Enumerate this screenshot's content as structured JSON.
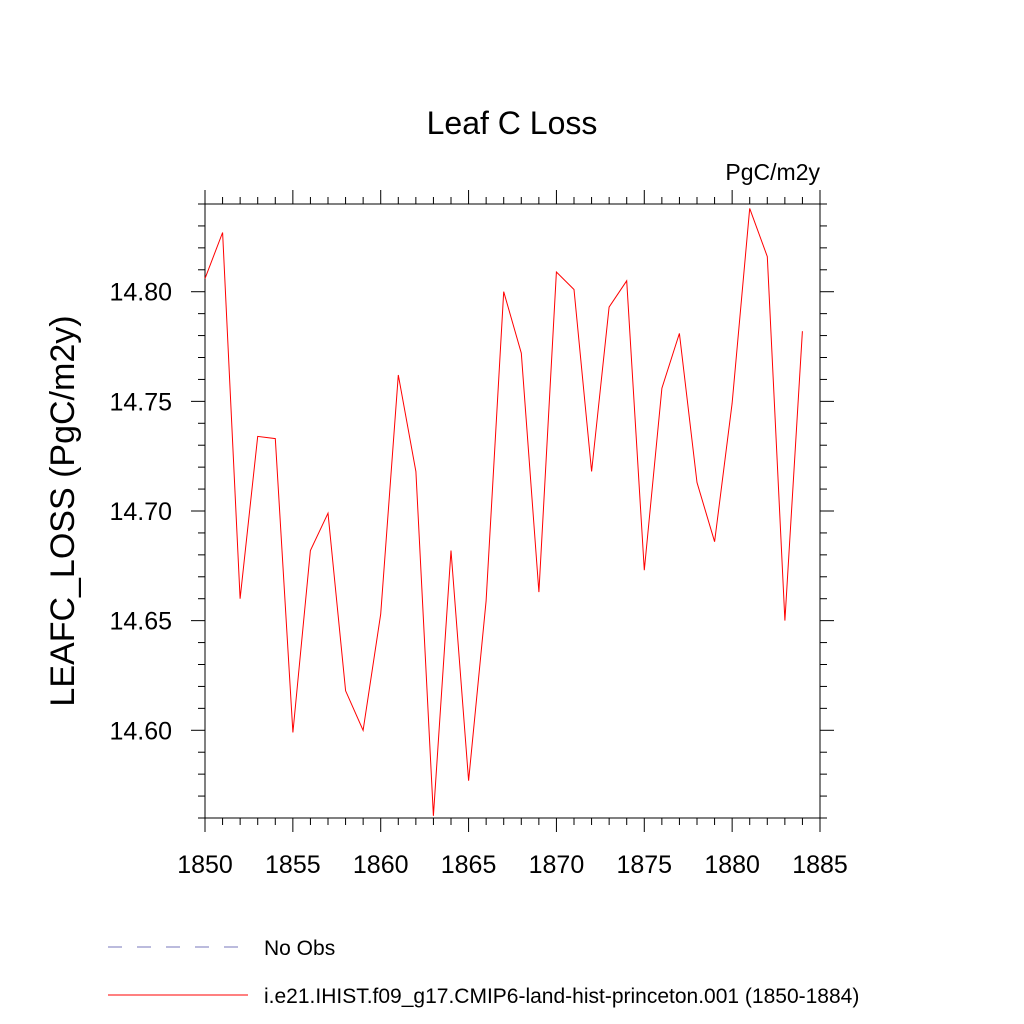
{
  "chart_data": {
    "type": "line",
    "title": "Leaf C Loss",
    "units": "PgC/m2y",
    "ylabel": "LEAFC_LOSS  (PgC/m2y)",
    "xlabel": "",
    "xlim": [
      1850,
      1885
    ],
    "ylim": [
      14.56,
      14.84
    ],
    "x_ticks": [
      "1850",
      "1855",
      "1860",
      "1865",
      "1870",
      "1875",
      "1880",
      "1885"
    ],
    "y_ticks": [
      "14.60",
      "14.65",
      "14.70",
      "14.75",
      "14.80"
    ],
    "grid": false,
    "legend_position": "bottom-left",
    "series": [
      {
        "name": "i.e21.IHIST.f09_g17.CMIP6-land-hist-princeton.001 (1850-1884)",
        "color": "#ff0000",
        "style": "solid",
        "x": [
          1850,
          1851,
          1852,
          1853,
          1854,
          1855,
          1856,
          1857,
          1858,
          1859,
          1860,
          1861,
          1862,
          1863,
          1864,
          1865,
          1866,
          1867,
          1868,
          1869,
          1870,
          1871,
          1872,
          1873,
          1874,
          1875,
          1876,
          1877,
          1878,
          1879,
          1880,
          1881,
          1882,
          1883,
          1884
        ],
        "values": [
          14.806,
          14.827,
          14.66,
          14.734,
          14.733,
          14.599,
          14.682,
          14.699,
          14.618,
          14.6,
          14.653,
          14.762,
          14.718,
          14.561,
          14.682,
          14.577,
          14.659,
          14.8,
          14.772,
          14.663,
          14.809,
          14.801,
          14.718,
          14.793,
          14.805,
          14.673,
          14.756,
          14.781,
          14.713,
          14.686,
          14.749,
          14.838,
          14.816,
          14.65,
          14.782
        ]
      }
    ],
    "legend": [
      {
        "label": "No Obs",
        "color": "#7777bb",
        "style": "dashed"
      },
      {
        "label": "i.e21.IHIST.f09_g17.CMIP6-land-hist-princeton.001 (1850-1884)",
        "color": "#ff0000",
        "style": "solid"
      }
    ]
  }
}
